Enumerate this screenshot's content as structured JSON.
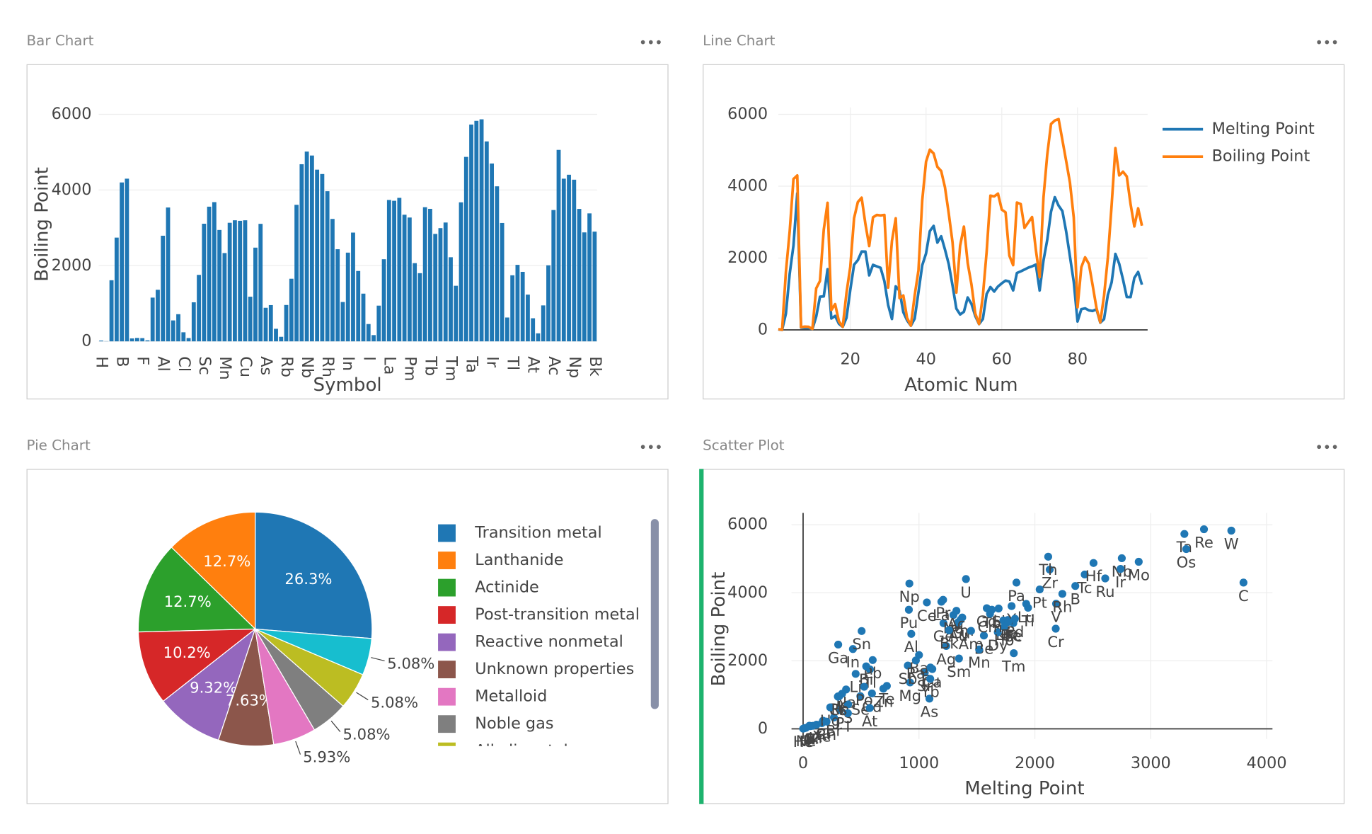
{
  "chart_data": [
    {
      "type": "bar",
      "title": "Bar Chart",
      "x_label": "Symbol",
      "y_label": "Boiling Point",
      "color": "#1f77b4",
      "categories": [
        "H",
        null,
        null,
        null,
        "B",
        null,
        null,
        null,
        "F",
        null,
        null,
        null,
        "Al",
        null,
        null,
        null,
        "Cl",
        null,
        null,
        null,
        "Sc",
        null,
        null,
        null,
        "Mn",
        null,
        null,
        null,
        "Cu",
        null,
        null,
        null,
        "As",
        null,
        null,
        null,
        "Rb",
        null,
        null,
        null,
        "Nb",
        null,
        null,
        null,
        "Rh",
        null,
        null,
        null,
        "In",
        null,
        null,
        null,
        "I",
        null,
        null,
        null,
        "La",
        null,
        null,
        null,
        "Pm",
        null,
        null,
        null,
        "Tb",
        null,
        null,
        null,
        "Tm",
        null,
        null,
        null,
        "Ta",
        null,
        null,
        null,
        "Ir",
        null,
        null,
        null,
        "Tl",
        null,
        null,
        null,
        "At",
        null,
        null,
        null,
        "Ac",
        null,
        null,
        null,
        "Np",
        null,
        null,
        null,
        "Bk"
      ],
      "values": [
        20.28,
        4.22,
        1615,
        2742,
        4200,
        4300,
        77.36,
        90.2,
        85.03,
        27.07,
        1156,
        1363,
        2792,
        3538,
        553,
        717.8,
        239.1,
        87.3,
        1032,
        1757,
        3109,
        3560,
        3680,
        2944,
        2334,
        3134,
        3200,
        3186,
        3200,
        1180,
        2477,
        3106,
        887,
        958,
        332,
        119.9,
        961,
        1655,
        3609,
        4682,
        5017,
        4912,
        4538,
        4423,
        3968,
        3236,
        2435,
        1040,
        2345,
        2875,
        1860,
        1261,
        457.4,
        165,
        944,
        2170,
        3737,
        3716,
        3793,
        3347,
        3273,
        2067,
        1802,
        3546,
        3503,
        2840,
        2993,
        3141,
        2223,
        1469,
        3675,
        4876,
        5731,
        5828,
        5869,
        5285,
        4701,
        4098,
        3129,
        629.9,
        1746,
        2022,
        1837,
        1235,
        610,
        211.3,
        950,
        2010,
        3471,
        5061,
        4300,
        4404,
        4273,
        3501,
        2880,
        3383,
        2900
      ],
      "ylim": [
        0,
        6000
      ],
      "yticks": [
        0,
        2000,
        4000,
        6000
      ],
      "grid": true
    },
    {
      "type": "line",
      "title": "Line Chart",
      "x_label": "Atomic Num",
      "legend": "right",
      "grid": true,
      "x": [
        1,
        2,
        3,
        4,
        5,
        6,
        7,
        8,
        9,
        10,
        11,
        12,
        13,
        14,
        15,
        16,
        17,
        18,
        19,
        20,
        21,
        22,
        23,
        24,
        25,
        26,
        27,
        28,
        29,
        30,
        31,
        32,
        33,
        34,
        35,
        36,
        37,
        38,
        39,
        40,
        41,
        42,
        43,
        44,
        45,
        46,
        47,
        48,
        49,
        50,
        51,
        52,
        53,
        54,
        55,
        56,
        57,
        58,
        59,
        60,
        61,
        62,
        63,
        64,
        65,
        66,
        67,
        68,
        69,
        70,
        71,
        72,
        73,
        74,
        75,
        76,
        77,
        78,
        79,
        80,
        81,
        82,
        83,
        84,
        85,
        86,
        87,
        88,
        89,
        90,
        91,
        92,
        93,
        94,
        95,
        96,
        97
      ],
      "series": [
        {
          "name": "Melting Point",
          "color": "#1f77b4",
          "values": [
            14.01,
            0.95,
            453.69,
            1560,
            2349,
            3800,
            63.05,
            54.8,
            53.5,
            24.56,
            370.87,
            923,
            933.47,
            1687,
            317.3,
            388.36,
            171.6,
            83.8,
            336.53,
            1115,
            1814,
            1941,
            2183,
            2180,
            1519,
            1811,
            1768,
            1728,
            1357.77,
            692.68,
            302.91,
            1211.4,
            1090,
            494,
            265.8,
            115.79,
            312.46,
            1050,
            1799,
            2128,
            2750,
            2896,
            2430,
            2607,
            2237,
            1828.05,
            1234.93,
            594.22,
            429.75,
            505.08,
            903.78,
            722.66,
            386.85,
            161.4,
            301.59,
            1000,
            1193,
            1068,
            1208,
            1297,
            1373,
            1345,
            1099,
            1585,
            1629,
            1680,
            1734,
            1770,
            1818,
            1097,
            1925,
            2506,
            3290,
            3695,
            3459,
            3306,
            2739,
            2041.4,
            1337.33,
            234.32,
            577,
            600.61,
            544.4,
            527,
            575,
            202,
            300,
            973,
            1323,
            2115,
            1841,
            1405.3,
            917,
            912.5,
            1449,
            1613,
            1259
          ]
        },
        {
          "name": "Boiling Point",
          "color": "#ff7f0e",
          "values": [
            20.28,
            4.22,
            1615,
            2742,
            4200,
            4300,
            77.36,
            90.2,
            85.03,
            27.07,
            1156,
            1363,
            2792,
            3538,
            553,
            717.8,
            239.1,
            87.3,
            1032,
            1757,
            3109,
            3560,
            3680,
            2944,
            2334,
            3134,
            3200,
            3186,
            3200,
            1180,
            2477,
            3106,
            887,
            958,
            332,
            119.9,
            961,
            1655,
            3609,
            4682,
            5017,
            4912,
            4538,
            4423,
            3968,
            3236,
            2435,
            1040,
            2345,
            2875,
            1860,
            1261,
            457.4,
            165,
            944,
            2170,
            3737,
            3716,
            3793,
            3347,
            3273,
            2067,
            1802,
            3546,
            3503,
            2840,
            2993,
            3141,
            2223,
            1469,
            3675,
            4876,
            5731,
            5828,
            5869,
            5285,
            4701,
            4098,
            3129,
            629.9,
            1746,
            2022,
            1837,
            1235,
            610,
            211.3,
            950,
            2010,
            3471,
            5061,
            4300,
            4404,
            4273,
            3501,
            2880,
            3383,
            2900
          ]
        }
      ],
      "xlim": [
        1,
        98.5
      ],
      "xticks": [
        20,
        40,
        60,
        80
      ],
      "ylim": [
        0,
        6000
      ],
      "yticks": [
        0,
        2000,
        4000,
        6000
      ]
    },
    {
      "type": "pie",
      "title": "Pie Chart",
      "categories": [
        "Transition metal",
        "Lanthanide",
        "Actinide",
        "Post-transition metal",
        "Reactive nonmetal",
        "Unknown properties",
        "Metalloid",
        "Noble gas",
        "Alkali metal",
        null
      ],
      "values": [
        26.3,
        12.7,
        12.7,
        10.2,
        9.32,
        7.63,
        5.93,
        5.08,
        5.08,
        5.08
      ],
      "value_labels": [
        "26.3%",
        "12.7%",
        "12.7%",
        "10.2%",
        "9.32%",
        "7.63%",
        "5.93%",
        "5.08%",
        "5.08%",
        "5.08%"
      ],
      "colors": [
        "#1f77b4",
        "#ff7f0e",
        "#2ca02c",
        "#d62728",
        "#9467bd",
        "#8c564b",
        "#e377c2",
        "#7f7f7f",
        "#bcbd22",
        "#17becf"
      ]
    },
    {
      "type": "scatter",
      "title": "Scatter Plot",
      "x_label": "Melting Point",
      "y_label": "Boiling Point",
      "color": "#1f77b4",
      "grid": true,
      "x": [
        14.01,
        0.95,
        453.69,
        1560,
        2349,
        3800,
        63.05,
        54.8,
        53.5,
        24.56,
        370.87,
        923,
        933.47,
        1687,
        317.3,
        388.36,
        171.6,
        83.8,
        336.53,
        1115,
        1814,
        1941,
        2183,
        2180,
        1519,
        1811,
        1768,
        1728,
        1357.77,
        692.68,
        302.91,
        1211.4,
        1090,
        494,
        265.8,
        115.79,
        312.46,
        1050,
        1799,
        2128,
        2750,
        2896,
        2430,
        2607,
        2237,
        1828.05,
        1234.93,
        594.22,
        429.75,
        505.08,
        903.78,
        722.66,
        386.85,
        161.4,
        301.59,
        1000,
        1193,
        1068,
        1208,
        1297,
        1373,
        1345,
        1099,
        1585,
        1629,
        1680,
        1734,
        1770,
        1818,
        1097,
        1925,
        2506,
        3290,
        3695,
        3459,
        3306,
        2739,
        2041.4,
        1337.33,
        234.32,
        577,
        600.61,
        544.4,
        527,
        575,
        202,
        300,
        973,
        1323,
        2115,
        1841,
        1405.3,
        917,
        912.5,
        1449,
        1613,
        1259
      ],
      "values": [
        20.28,
        4.22,
        1615,
        2742,
        4200,
        4300,
        77.36,
        90.2,
        85.03,
        27.07,
        1156,
        1363,
        2792,
        3538,
        553,
        717.8,
        239.1,
        87.3,
        1032,
        1757,
        3109,
        3560,
        3680,
        2944,
        2334,
        3134,
        3200,
        3186,
        3200,
        1180,
        2477,
        3106,
        887,
        958,
        332,
        119.9,
        961,
        1655,
        3609,
        4682,
        5017,
        4912,
        4538,
        4423,
        3968,
        3236,
        2435,
        1040,
        2345,
        2875,
        1860,
        1261,
        457.4,
        165,
        944,
        2170,
        3737,
        3716,
        3793,
        3347,
        3273,
        2067,
        1802,
        3546,
        3503,
        2840,
        2993,
        3141,
        2223,
        1469,
        3675,
        4876,
        5731,
        5828,
        5869,
        5285,
        4701,
        4098,
        3129,
        629.9,
        1746,
        2022,
        1837,
        1235,
        610,
        211.3,
        950,
        2010,
        3471,
        5061,
        4300,
        4404,
        4273,
        3501,
        2880,
        3383,
        2900
      ],
      "labels": [
        "H",
        "He",
        "Li",
        "Be",
        "B",
        "C",
        "N",
        "O",
        "F",
        "Ne",
        "Na",
        "Mg",
        "Al",
        "Si",
        "P",
        "S",
        "Cl",
        "Ar",
        "K",
        "Ca",
        "Sc",
        "Ti",
        "V",
        "Cr",
        "Mn",
        "Fe",
        "Co",
        "Ni",
        "Cu",
        "Zn",
        "Ga",
        "Ge",
        "As",
        "Se",
        "Br",
        "Kr",
        "Rb",
        "Sr",
        "Y",
        "Zr",
        "Nb",
        "Mo",
        "Tc",
        "Ru",
        "Rh",
        "Pd",
        "Ag",
        "Cd",
        "In",
        "Sn",
        "Sb",
        "Te",
        "I",
        "Xe",
        "Cs",
        "Ba",
        "La",
        "Ce",
        "Pr",
        "Nd",
        "Pm",
        "Sm",
        "Eu",
        "Gd",
        "Tb",
        "Dy",
        "Ho",
        "Er",
        "Tm",
        "Yb",
        "Lu",
        "Hf",
        "Ta",
        "W",
        "Re",
        "Os",
        "Ir",
        "Pt",
        "Au",
        "Hg",
        "Tl",
        "Pb",
        "Bi",
        "Po",
        "At",
        "Rn",
        "Fr",
        "Ra",
        "Ac",
        "Th",
        "Pa",
        "U",
        "Np",
        "Pu",
        "Am",
        "Cm",
        "Bk"
      ],
      "xlim": [
        -100,
        4050
      ],
      "xticks": [
        0,
        1000,
        2000,
        3000,
        4000
      ],
      "ylim": [
        -300,
        6350
      ],
      "yticks": [
        0,
        2000,
        4000,
        6000
      ]
    }
  ]
}
